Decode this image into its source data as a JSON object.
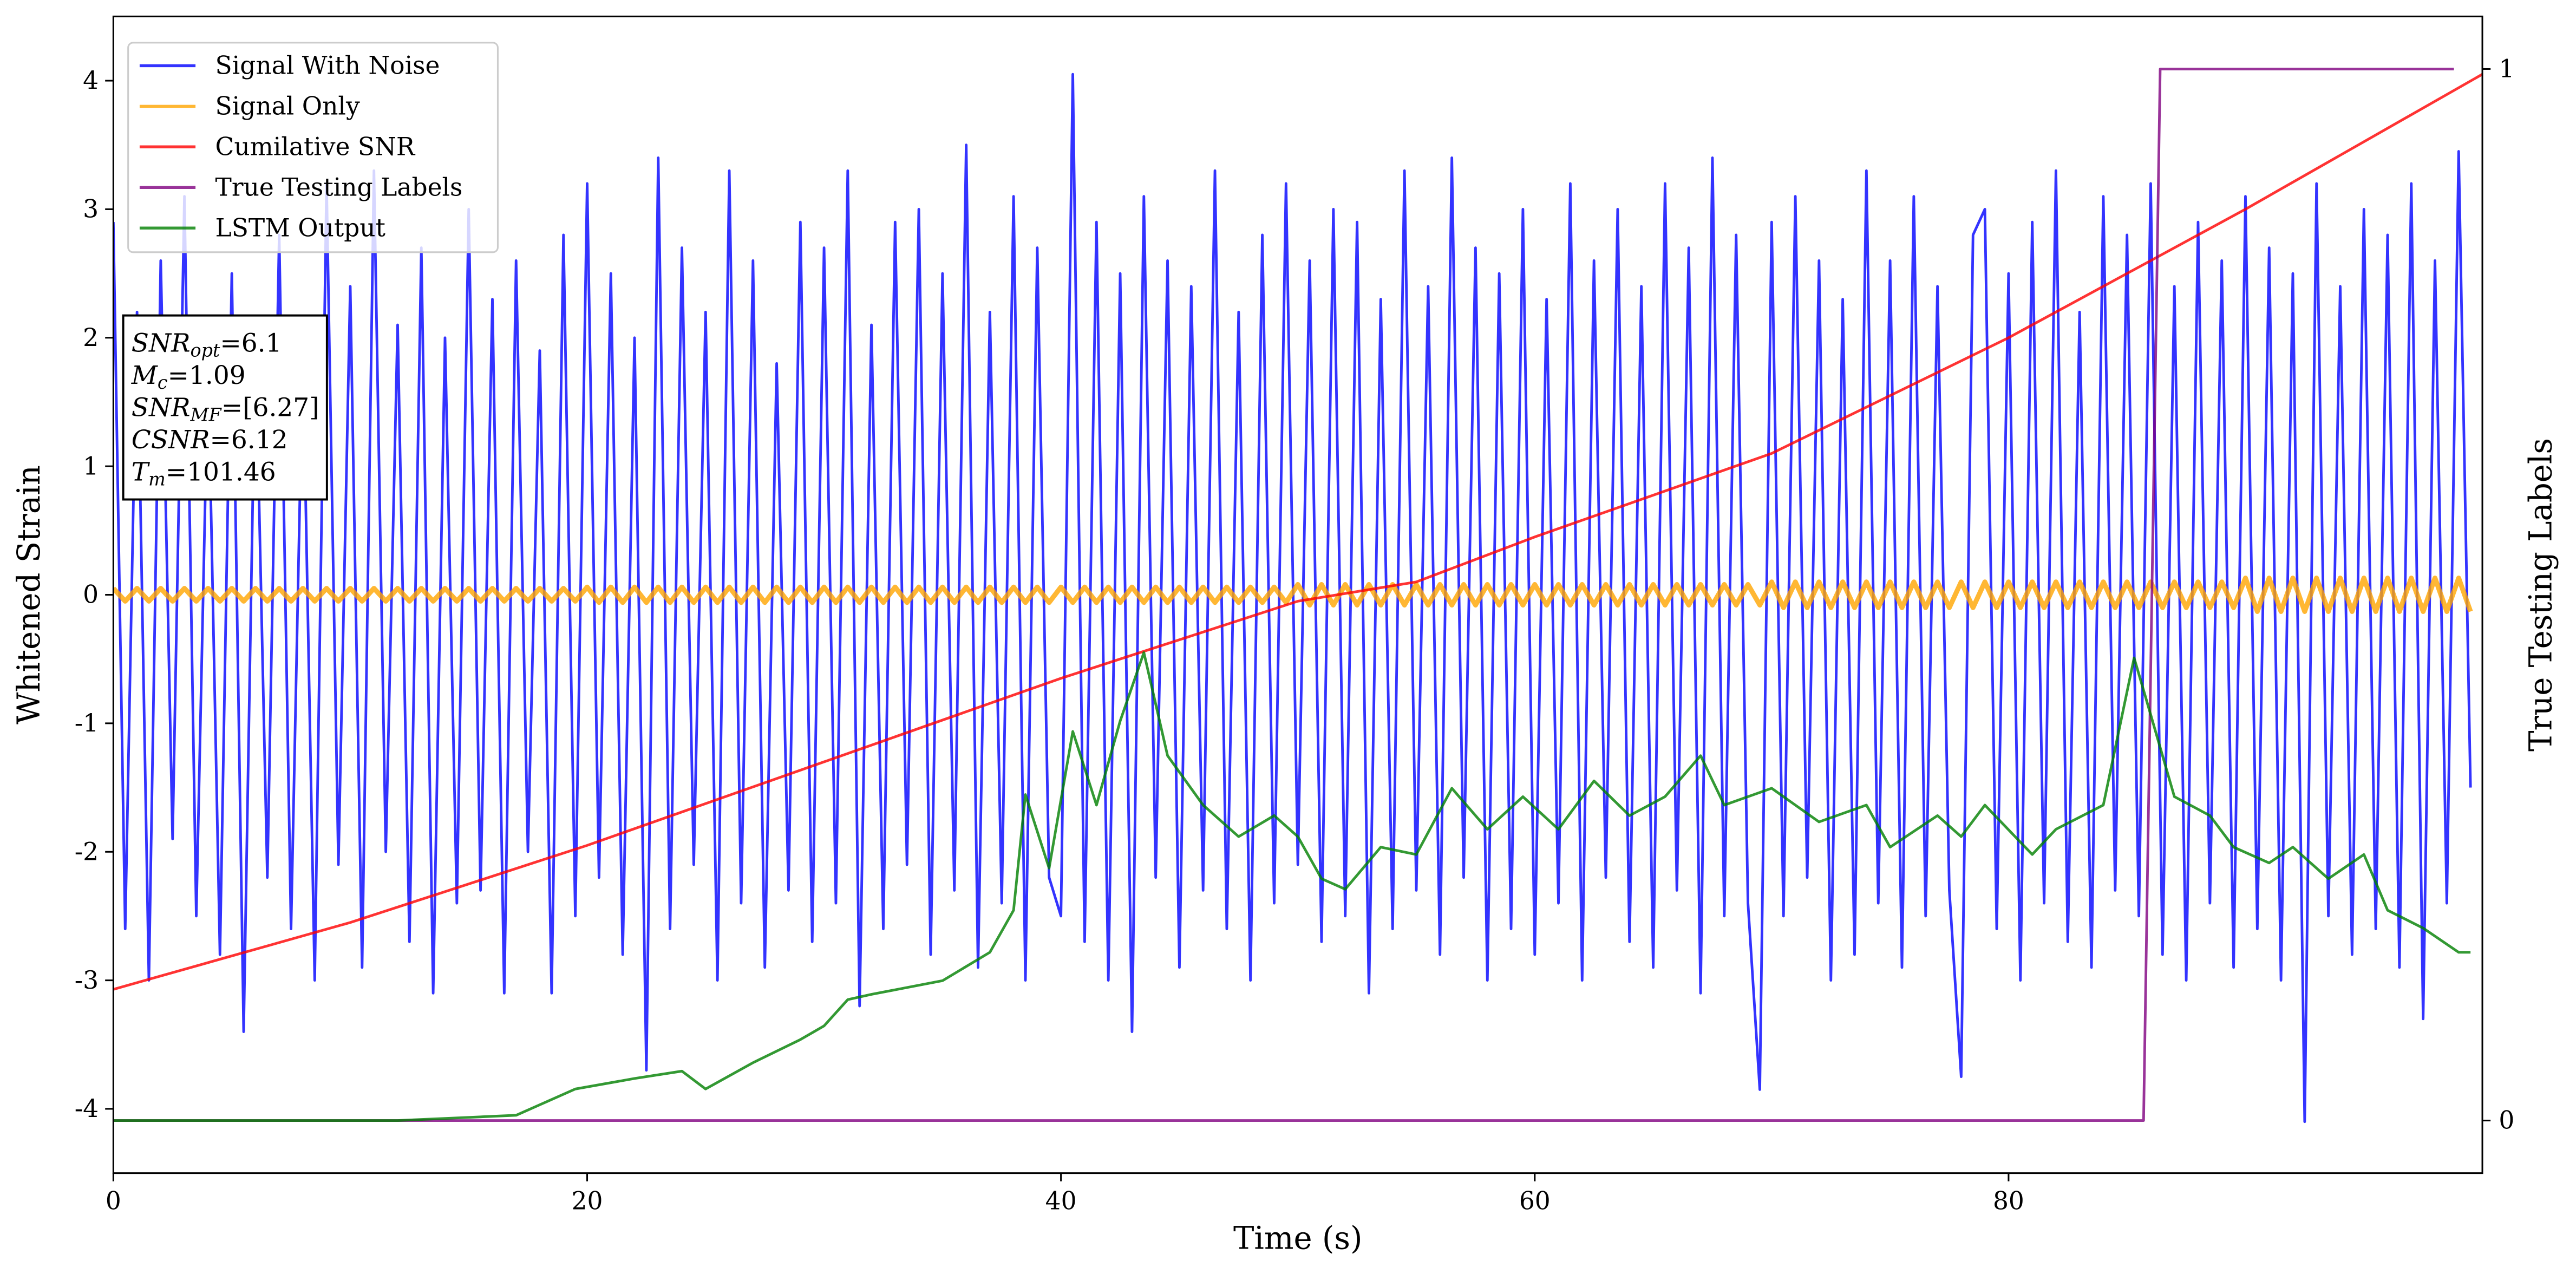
{
  "chart_data": {
    "type": "line",
    "xlabel": "Time (s)",
    "ylabel": "Whitened Strain",
    "y2label": "True Testing Labels",
    "xlim": [
      0,
      100
    ],
    "ylim": [
      -4.5,
      4.5
    ],
    "y2lim": [
      -0.05,
      1.05
    ],
    "xticks": [
      0,
      20,
      40,
      60,
      80
    ],
    "yticks": [
      -4,
      -3,
      -2,
      -1,
      0,
      1,
      2,
      3,
      4
    ],
    "y2ticks": [
      0,
      1
    ],
    "legend": "upper left",
    "x": [
      0,
      0.5,
      1,
      1.5,
      2,
      2.5,
      3,
      3.5,
      4,
      4.5,
      5,
      5.5,
      6,
      6.5,
      7,
      7.5,
      8,
      8.5,
      9,
      9.5,
      10,
      10.5,
      11,
      11.5,
      12,
      12.5,
      13,
      13.5,
      14,
      14.5,
      15,
      15.5,
      16,
      16.5,
      17,
      17.5,
      18,
      18.5,
      19,
      19.5,
      20,
      20.5,
      21,
      21.5,
      22,
      22.5,
      23,
      23.5,
      24,
      24.5,
      25,
      25.5,
      26,
      26.5,
      27,
      27.5,
      28,
      28.5,
      29,
      29.5,
      30,
      30.5,
      31,
      31.5,
      32,
      32.5,
      33,
      33.5,
      34,
      34.5,
      35,
      35.5,
      36,
      36.5,
      37,
      37.5,
      38,
      38.5,
      39,
      39.5,
      40,
      40.5,
      41,
      41.5,
      42,
      42.5,
      43,
      43.5,
      44,
      44.5,
      45,
      45.5,
      46,
      46.5,
      47,
      47.5,
      48,
      48.5,
      49,
      49.5,
      50,
      50.5,
      51,
      51.5,
      52,
      52.5,
      53,
      53.5,
      54,
      54.5,
      55,
      55.5,
      56,
      56.5,
      57,
      57.5,
      58,
      58.5,
      59,
      59.5,
      60,
      60.5,
      61,
      61.5,
      62,
      62.5,
      63,
      63.5,
      64,
      64.5,
      65,
      65.5,
      66,
      66.5,
      67,
      67.5,
      68,
      68.5,
      69,
      69.5,
      70,
      70.5,
      71,
      71.5,
      72,
      72.5,
      73,
      73.5,
      74,
      74.5,
      75,
      75.5,
      76,
      76.5,
      77,
      77.5,
      78,
      78.5,
      79,
      79.5,
      80,
      80.5,
      81,
      81.5,
      82,
      82.5,
      83,
      83.5,
      84,
      84.5,
      85,
      85.5,
      86,
      86.5,
      87,
      87.5,
      88,
      88.5,
      89,
      89.5,
      90,
      90.5,
      91,
      91.5,
      92,
      92.5,
      93,
      93.5,
      94,
      94.5,
      95,
      95.5,
      96,
      96.5,
      97,
      97.5,
      98,
      98.5,
      99,
      99.5
    ],
    "series": [
      {
        "name": "Signal With Noise",
        "color": "#0000ff",
        "values": [
          2.9,
          -2.6,
          2.2,
          -3.0,
          2.6,
          -1.9,
          3.1,
          -2.5,
          1.8,
          -2.8,
          2.5,
          -3.4,
          2.0,
          -2.2,
          2.8,
          -2.6,
          1.9,
          -3.0,
          3.2,
          -2.1,
          2.4,
          -2.9,
          3.3,
          -2.0,
          2.1,
          -2.7,
          2.7,
          -3.1,
          2.0,
          -2.4,
          3.0,
          -2.3,
          2.3,
          -3.1,
          2.6,
          -2.0,
          1.9,
          -3.1,
          2.8,
          -2.5,
          3.2,
          -2.2,
          2.5,
          -2.8,
          2.0,
          -3.7,
          3.4,
          -2.6,
          2.7,
          -2.1,
          2.2,
          -3.0,
          3.3,
          -2.4,
          2.6,
          -2.9,
          1.8,
          -2.3,
          2.9,
          -2.7,
          2.7,
          -2.4,
          3.3,
          -3.2,
          2.1,
          -2.6,
          2.9,
          -2.1,
          3.0,
          -2.8,
          2.5,
          -2.3,
          3.5,
          -2.9,
          2.2,
          -2.4,
          3.1,
          -3.0,
          2.7,
          -2.2,
          -2.5,
          4.05,
          -2.7,
          2.9,
          -3.0,
          2.5,
          -3.4,
          3.1,
          -2.2,
          2.6,
          -2.9,
          2.4,
          -2.3,
          3.3,
          -2.6,
          2.2,
          -3.0,
          2.8,
          -2.4,
          3.2,
          -2.1,
          2.6,
          -2.7,
          3.0,
          -2.5,
          2.9,
          -3.1,
          2.3,
          -2.6,
          3.3,
          -2.3,
          2.4,
          -2.8,
          3.4,
          -2.2,
          2.7,
          -3.0,
          2.5,
          -2.6,
          3.0,
          -2.8,
          2.3,
          -2.4,
          3.2,
          -3.0,
          2.6,
          -2.2,
          3.0,
          -2.7,
          2.4,
          -2.9,
          3.2,
          -2.3,
          2.7,
          -3.1,
          3.4,
          -2.5,
          2.8,
          -2.4,
          -3.85,
          2.9,
          -2.5,
          3.1,
          -2.2,
          2.6,
          -3.0,
          2.3,
          -2.8,
          3.3,
          -2.4,
          2.6,
          -2.9,
          3.1,
          -2.5,
          2.4,
          -2.3,
          -3.75,
          2.8,
          3.0,
          -2.6,
          2.5,
          -3.0,
          2.9,
          -2.4,
          3.3,
          -2.7,
          2.2,
          -2.9,
          3.1,
          -2.3,
          2.8,
          -2.5,
          3.2,
          -2.8,
          2.4,
          -3.0,
          2.9,
          -2.4,
          2.6,
          -2.9,
          3.1,
          -2.6,
          2.7,
          -3.0,
          2.5,
          -4.1,
          3.2,
          -2.5,
          2.4,
          -2.8,
          3.0,
          -2.6,
          2.8,
          -2.9,
          3.2,
          -3.3,
          2.6,
          -2.4,
          3.45,
          -1.5
        ]
      },
      {
        "name": "Signal Only",
        "color": "#ffa500",
        "values": [
          0.05,
          -0.05,
          0.05,
          -0.05,
          0.05,
          -0.05,
          0.05,
          -0.05,
          0.05,
          -0.05,
          0.05,
          -0.05,
          0.05,
          -0.05,
          0.05,
          -0.05,
          0.05,
          -0.05,
          0.05,
          -0.05,
          0.05,
          -0.05,
          0.05,
          -0.05,
          0.05,
          -0.05,
          0.05,
          -0.05,
          0.05,
          -0.05,
          0.05,
          -0.05,
          0.05,
          -0.05,
          0.05,
          -0.05,
          0.05,
          -0.05,
          0.05,
          -0.05,
          0.06,
          -0.06,
          0.06,
          -0.06,
          0.06,
          -0.06,
          0.06,
          -0.06,
          0.06,
          -0.06,
          0.06,
          -0.06,
          0.06,
          -0.06,
          0.06,
          -0.06,
          0.06,
          -0.06,
          0.06,
          -0.06,
          0.06,
          -0.06,
          0.06,
          -0.06,
          0.06,
          -0.06,
          0.06,
          -0.06,
          0.06,
          -0.06,
          0.06,
          -0.06,
          0.06,
          -0.06,
          0.06,
          -0.06,
          0.06,
          -0.06,
          0.06,
          -0.06,
          0.06,
          -0.06,
          0.06,
          -0.06,
          0.06,
          -0.06,
          0.06,
          -0.06,
          0.06,
          -0.06,
          0.06,
          -0.06,
          0.06,
          -0.06,
          0.06,
          -0.06,
          0.06,
          -0.06,
          0.06,
          -0.06,
          0.08,
          -0.08,
          0.08,
          -0.08,
          0.08,
          -0.08,
          0.08,
          -0.08,
          0.08,
          -0.08,
          0.08,
          -0.08,
          0.08,
          -0.08,
          0.08,
          -0.08,
          0.08,
          -0.08,
          0.08,
          -0.08,
          0.08,
          -0.08,
          0.08,
          -0.08,
          0.08,
          -0.08,
          0.08,
          -0.08,
          0.08,
          -0.08,
          0.08,
          -0.08,
          0.08,
          -0.08,
          0.08,
          -0.08,
          0.08,
          -0.08,
          0.08,
          -0.08,
          0.1,
          -0.1,
          0.1,
          -0.1,
          0.1,
          -0.1,
          0.1,
          -0.1,
          0.1,
          -0.1,
          0.1,
          -0.1,
          0.1,
          -0.1,
          0.1,
          -0.1,
          0.1,
          -0.1,
          0.1,
          -0.1,
          0.1,
          -0.1,
          0.1,
          -0.1,
          0.1,
          -0.1,
          0.1,
          -0.1,
          0.1,
          -0.1,
          0.1,
          -0.1,
          0.1,
          -0.1,
          0.1,
          -0.1,
          0.1,
          -0.1,
          0.1,
          -0.1,
          0.13,
          -0.13,
          0.13,
          -0.13,
          0.13,
          -0.13,
          0.13,
          -0.13,
          0.13,
          -0.13,
          0.13,
          -0.13,
          0.13,
          -0.13,
          0.13,
          -0.13,
          0.13,
          -0.13,
          0.13,
          -0.13
        ]
      },
      {
        "name": "Cumilative SNR",
        "color": "#ff0000",
        "x": [
          0,
          10,
          20,
          30,
          40,
          50,
          55,
          60,
          70,
          80,
          90,
          100
        ],
        "values": [
          -3.07,
          -2.55,
          -1.95,
          -1.3,
          -0.65,
          -0.05,
          0.1,
          0.45,
          1.1,
          2.0,
          3.0,
          4.05
        ]
      },
      {
        "name": "True Testing Labels",
        "color": "#800080",
        "axis": "y2",
        "x": [
          0,
          85.7,
          86.4,
          98.8
        ],
        "values": [
          0,
          0,
          1,
          1
        ]
      },
      {
        "name": "LSTM Output",
        "color": "#008000",
        "axis": "y2",
        "x": [
          0,
          12,
          15,
          17,
          18,
          19.5,
          22,
          24,
          25,
          27,
          29,
          30,
          31,
          32,
          35,
          37,
          38,
          38.5,
          39.5,
          40.5,
          41.5,
          42.5,
          43.5,
          44.5,
          46,
          47.5,
          49,
          50,
          51,
          52,
          53.5,
          55,
          56.5,
          58,
          59.5,
          61,
          62.5,
          64,
          65.5,
          67,
          68,
          70,
          72,
          74,
          75,
          77,
          78,
          79,
          81,
          82,
          84,
          85.3,
          86,
          87,
          88.5,
          89.5,
          91,
          92,
          93.5,
          95,
          96,
          97.5,
          99,
          99.5
        ],
        "values": [
          0,
          0,
          0.003,
          0.005,
          0.015,
          0.03,
          0.04,
          0.047,
          0.03,
          0.055,
          0.077,
          0.09,
          0.115,
          0.12,
          0.133,
          0.16,
          0.2,
          0.31,
          0.24,
          0.37,
          0.3,
          0.38,
          0.445,
          0.347,
          0.3,
          0.27,
          0.29,
          0.27,
          0.23,
          0.22,
          0.26,
          0.253,
          0.316,
          0.277,
          0.308,
          0.277,
          0.323,
          0.29,
          0.308,
          0.347,
          0.3,
          0.316,
          0.284,
          0.3,
          0.26,
          0.29,
          0.27,
          0.3,
          0.253,
          0.277,
          0.3,
          0.44,
          0.386,
          0.308,
          0.29,
          0.26,
          0.245,
          0.26,
          0.23,
          0.253,
          0.2,
          0.183,
          0.16,
          0.16
        ]
      }
    ],
    "annotation": [
      {
        "main": "SNR",
        "sub": "opt",
        "rest": "=6.1"
      },
      {
        "main": "M",
        "sub": "c",
        "rest": "=1.09"
      },
      {
        "main": "SNR",
        "sub": "MF",
        "rest": "=[6.27]"
      },
      {
        "main": "CSNR",
        "rest": "=6.12"
      },
      {
        "main": "T",
        "sub": "m",
        "rest": "=101.46"
      }
    ]
  }
}
